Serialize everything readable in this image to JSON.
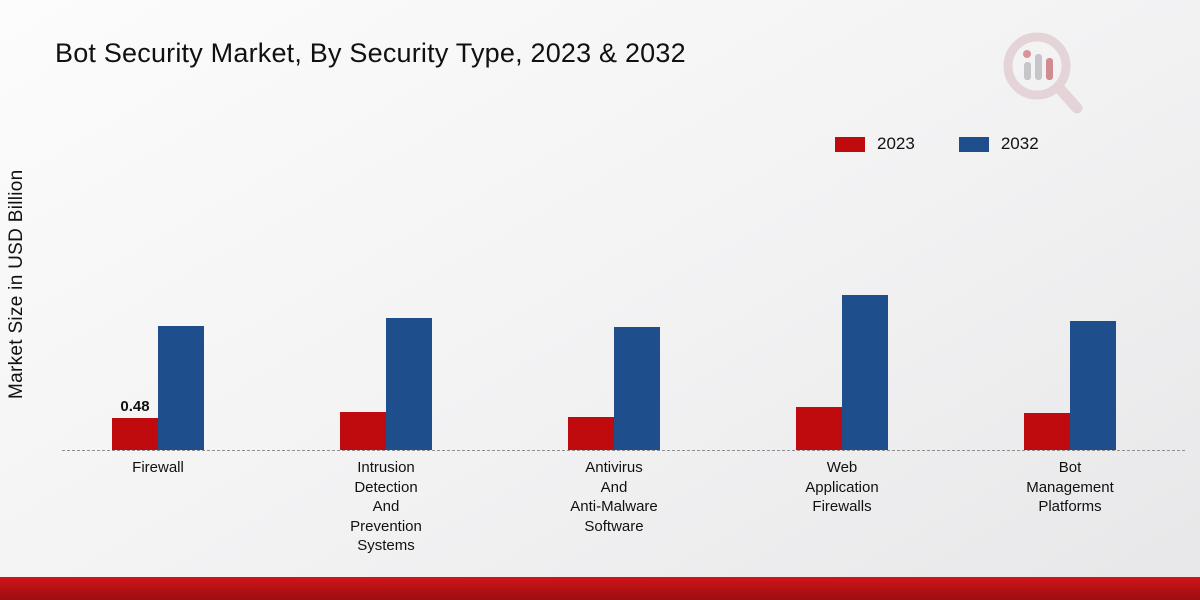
{
  "page": {
    "title": "Bot Security Market, By Security Type, 2023 & 2032",
    "ylabel": "Market Size in USD Billion"
  },
  "legend": {
    "position": "top-right",
    "items": [
      {
        "label": "2023",
        "color": "#c00b0e"
      },
      {
        "label": "2032",
        "color": "#1f4e8c"
      }
    ]
  },
  "chart_data": {
    "type": "bar",
    "title": "Bot Security Market, By Security Type, 2023 & 2032",
    "xlabel": "",
    "ylabel": "Market Size in USD Billion",
    "ylim": [
      0,
      2.6
    ],
    "grid": false,
    "baseline_style": "dashed",
    "categories": [
      "Firewall",
      "Intrusion Detection And Prevention Systems",
      "Antivirus And Anti-Malware Software",
      "Web Application Firewalls",
      "Bot Management Platforms"
    ],
    "category_lines": [
      [
        "Firewall"
      ],
      [
        "Intrusion",
        "Detection",
        "And",
        "Prevention",
        "Systems"
      ],
      [
        "Antivirus",
        "And",
        "Anti-Malware",
        "Software"
      ],
      [
        "Web",
        "Application",
        "Firewalls"
      ],
      [
        "Bot",
        "Management",
        "Platforms"
      ]
    ],
    "series": [
      {
        "name": "2023",
        "color": "#c00b0e",
        "values": [
          0.48,
          0.57,
          0.49,
          0.64,
          0.55
        ]
      },
      {
        "name": "2032",
        "color": "#1f4e8c",
        "values": [
          1.85,
          1.97,
          1.84,
          2.31,
          1.93
        ]
      }
    ],
    "bar_labels": [
      [
        "0.48",
        "",
        "",
        "",
        ""
      ],
      [
        "",
        "",
        "",
        "",
        ""
      ]
    ]
  },
  "branding": {
    "logo": "market-research-future-logo",
    "bottom_band_color": "#b01014"
  }
}
